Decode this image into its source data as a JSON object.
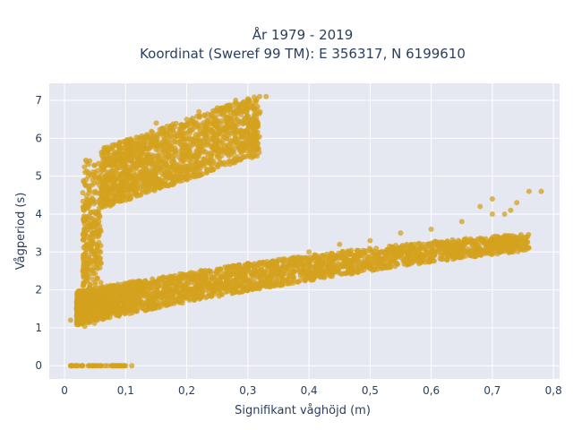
{
  "chart_data": {
    "type": "scatter",
    "title_line1": "År 1979 - 2019",
    "title_line2": "Koordinat (Sweref 99 TM): E 356317, N 6199610",
    "xlabel": "Signifikant våghöjd (m)",
    "ylabel": "Vågperiod (s)",
    "xlim": [
      -0.025,
      0.81
    ],
    "ylim": [
      -0.35,
      7.45
    ],
    "xticks": [
      0,
      0.1,
      0.2,
      0.3,
      0.4,
      0.5,
      0.6,
      0.7,
      0.8
    ],
    "xtick_labels": [
      "0",
      "0,1",
      "0,2",
      "0,3",
      "0,4",
      "0,5",
      "0,6",
      "0,7",
      "0,8"
    ],
    "yticks": [
      0,
      1,
      2,
      3,
      4,
      5,
      6,
      7
    ],
    "ytick_labels": [
      "0",
      "1",
      "2",
      "3",
      "4",
      "5",
      "6",
      "7"
    ],
    "grid": true,
    "marker_color": "#D4A21E",
    "plot_bg": "#E5E8F1",
    "series": [
      {
        "values_description_free": true,
        "x": [
          0.01,
          0.02,
          0.03,
          0.04,
          0.05,
          0.06,
          0.07,
          0.08,
          0.09,
          0.1,
          0.11,
          0.01,
          0.02,
          0.03,
          0.05,
          0.08,
          0.1,
          0.12,
          0.15,
          0.2,
          0.25,
          0.3,
          0.35,
          0.4,
          0.45,
          0.5,
          0.55,
          0.6,
          0.65,
          0.7,
          0.74,
          0.76,
          0.78,
          0.03,
          0.04,
          0.05,
          0.06,
          0.08,
          0.1,
          0.12,
          0.15,
          0.18,
          0.2,
          0.22,
          0.25,
          0.27,
          0.3,
          0.31,
          0.32,
          0.15,
          0.2,
          0.22,
          0.25,
          0.28,
          0.3,
          0.33,
          0.55,
          0.57,
          0.6,
          0.62,
          0.68,
          0.7,
          0.72,
          0.73
        ],
        "y": [
          0,
          0,
          0,
          0,
          0,
          0,
          0,
          0,
          0,
          0,
          0,
          1.2,
          1.3,
          1.4,
          1.6,
          1.8,
          2.0,
          2.1,
          2.2,
          2.4,
          2.5,
          2.7,
          2.8,
          3.0,
          3.2,
          3.3,
          3.5,
          3.6,
          3.8,
          4.0,
          4.3,
          4.6,
          4.6,
          1.5,
          2.5,
          3.5,
          4.5,
          5.0,
          5.3,
          5.5,
          5.7,
          5.9,
          6.0,
          6.1,
          6.3,
          6.4,
          6.5,
          6.6,
          6.7,
          6.4,
          6.5,
          6.7,
          6.8,
          7.0,
          7.0,
          7.1,
          3.0,
          2.9,
          2.8,
          3.2,
          4.2,
          4.4,
          4.0,
          4.1
        ]
      }
    ]
  }
}
